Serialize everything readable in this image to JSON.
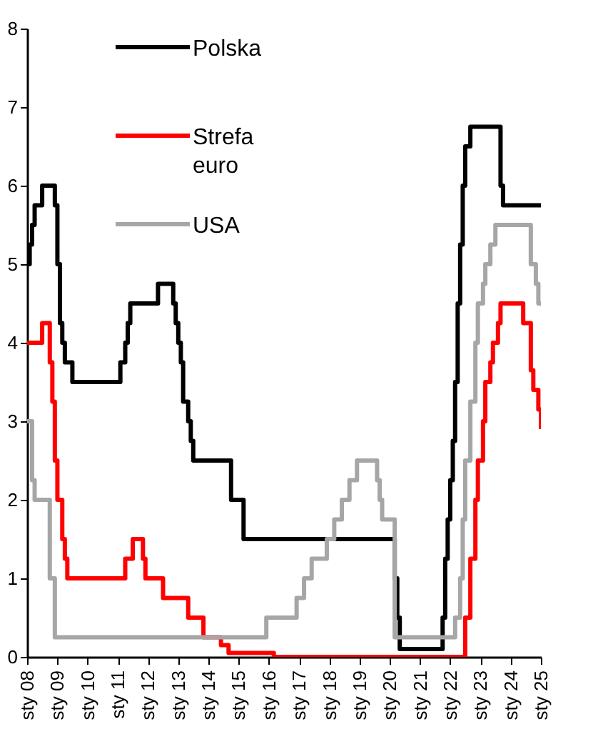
{
  "chart_data": {
    "type": "step",
    "legend": "top left",
    "grid": false,
    "line_style": "solid",
    "marker": "none",
    "xlim": [
      "2008-01",
      "2025-01"
    ],
    "xticks": [
      {
        "value": "2008-01",
        "label": "sty 08"
      },
      {
        "value": "2009-01",
        "label": "sty 09"
      },
      {
        "value": "2010-01",
        "label": "sty 10"
      },
      {
        "value": "2011-01",
        "label": "sty 11"
      },
      {
        "value": "2012-01",
        "label": "sty 12"
      },
      {
        "value": "2013-01",
        "label": "sty 13"
      },
      {
        "value": "2014-01",
        "label": "sty 14"
      },
      {
        "value": "2015-01",
        "label": "sty 15"
      },
      {
        "value": "2016-01",
        "label": "sty 16"
      },
      {
        "value": "2017-01",
        "label": "sty 17"
      },
      {
        "value": "2018-01",
        "label": "sty 18"
      },
      {
        "value": "2019-01",
        "label": "sty 19"
      },
      {
        "value": "2020-01",
        "label": "sty 20"
      },
      {
        "value": "2021-01",
        "label": "sty 21"
      },
      {
        "value": "2022-01",
        "label": "sty 22"
      },
      {
        "value": "2023-01",
        "label": "sty 23"
      },
      {
        "value": "2024-01",
        "label": "sty 24"
      },
      {
        "value": "2025-01",
        "label": "sty 25"
      }
    ],
    "ylim": [
      0,
      8
    ],
    "yticks": [
      0,
      1,
      2,
      3,
      4,
      5,
      6,
      7,
      8
    ],
    "series": [
      {
        "name": "Polska",
        "color": "#000000",
        "x": [
          "2008-01",
          "2008-02",
          "2008-03",
          "2008-04",
          "2008-07",
          "2008-12",
          "2009-01",
          "2009-02",
          "2009-03",
          "2009-04",
          "2009-07",
          "2011-02",
          "2011-04",
          "2011-05",
          "2011-06",
          "2012-05",
          "2012-11",
          "2012-12",
          "2013-01",
          "2013-02",
          "2013-03",
          "2013-05",
          "2013-06",
          "2013-07",
          "2014-10",
          "2015-03",
          "2020-03",
          "2020-04",
          "2020-05",
          "2021-10",
          "2021-11",
          "2021-12",
          "2022-01",
          "2022-02",
          "2022-03",
          "2022-04",
          "2022-05",
          "2022-06",
          "2022-07",
          "2022-09",
          "2023-09",
          "2023-10",
          "2025-01"
        ],
        "values": [
          5.0,
          5.25,
          5.5,
          5.75,
          6.0,
          5.75,
          5.0,
          4.25,
          4.0,
          3.75,
          3.5,
          3.75,
          4.0,
          4.25,
          4.5,
          4.75,
          4.5,
          4.25,
          4.0,
          3.75,
          3.25,
          3.0,
          2.75,
          2.5,
          2.0,
          1.5,
          1.0,
          0.5,
          0.1,
          0.5,
          1.25,
          1.75,
          2.25,
          2.75,
          3.5,
          4.5,
          5.25,
          6.0,
          6.5,
          6.75,
          6.0,
          5.75,
          5.75
        ]
      },
      {
        "name": "Strefa euro",
        "color": "#ff0000",
        "x": [
          "2008-01",
          "2008-07",
          "2008-10",
          "2008-11",
          "2008-12",
          "2009-01",
          "2009-03",
          "2009-04",
          "2009-05",
          "2011-04",
          "2011-07",
          "2011-11",
          "2011-12",
          "2012-07",
          "2013-05",
          "2013-11",
          "2014-06",
          "2014-09",
          "2016-03",
          "2022-07",
          "2022-09",
          "2022-11",
          "2022-12",
          "2023-02",
          "2023-03",
          "2023-05",
          "2023-06",
          "2023-08",
          "2023-09",
          "2024-06",
          "2024-09",
          "2024-10",
          "2024-12",
          "2025-01"
        ],
        "values": [
          4.0,
          4.25,
          3.75,
          3.25,
          2.5,
          2.0,
          1.5,
          1.25,
          1.0,
          1.25,
          1.5,
          1.25,
          1.0,
          0.75,
          0.5,
          0.25,
          0.15,
          0.05,
          0.0,
          0.5,
          1.25,
          2.0,
          2.5,
          3.0,
          3.5,
          3.75,
          4.0,
          4.25,
          4.5,
          4.25,
          3.65,
          3.4,
          3.15,
          2.9
        ]
      },
      {
        "name": "USA",
        "color": "#a6a6a6",
        "x": [
          "2008-01",
          "2008-03",
          "2008-04",
          "2008-10",
          "2008-12",
          "2015-12",
          "2016-12",
          "2017-03",
          "2017-06",
          "2017-12",
          "2018-03",
          "2018-06",
          "2018-09",
          "2018-12",
          "2019-08",
          "2019-09",
          "2019-10",
          "2020-03",
          "2022-03",
          "2022-05",
          "2022-06",
          "2022-07",
          "2022-09",
          "2022-11",
          "2022-12",
          "2023-02",
          "2023-03",
          "2023-05",
          "2023-07",
          "2024-09",
          "2024-11",
          "2024-12",
          "2025-01"
        ],
        "values": [
          3.0,
          2.25,
          2.0,
          1.0,
          0.25,
          0.5,
          0.75,
          1.0,
          1.25,
          1.5,
          1.75,
          2.0,
          2.25,
          2.5,
          2.25,
          2.0,
          1.75,
          0.25,
          0.5,
          1.0,
          1.75,
          2.5,
          3.25,
          4.0,
          4.5,
          4.75,
          5.0,
          5.25,
          5.5,
          5.0,
          4.75,
          4.5,
          4.5
        ]
      }
    ]
  }
}
